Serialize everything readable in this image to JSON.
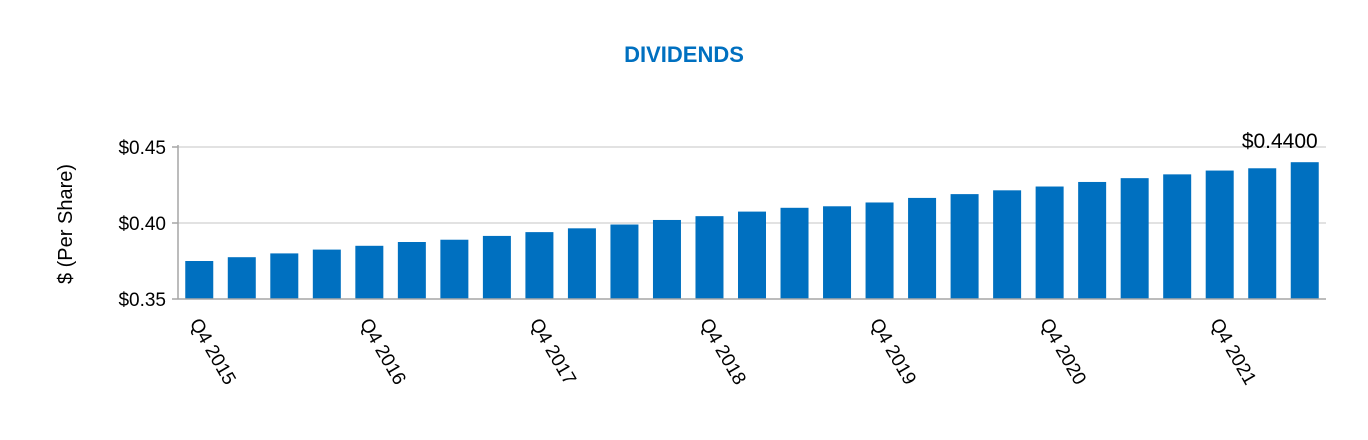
{
  "chart_data": {
    "type": "bar",
    "title": "DIVIDENDS",
    "ylabel": "$ (Per Share)",
    "xlabel": "",
    "ylim": [
      0.35,
      0.45
    ],
    "ytick_values": [
      0.35,
      0.4,
      0.45
    ],
    "ytick_labels": [
      "$0.35",
      "$0.40",
      "$0.45"
    ],
    "grid": true,
    "categories": [
      "Q4 2015",
      "",
      "",
      "",
      "Q4 2016",
      "",
      "",
      "",
      "Q4 2017",
      "",
      "",
      "",
      "Q4 2018",
      "",
      "",
      "",
      "Q4 2019",
      "",
      "",
      "",
      "Q4 2020",
      "",
      "",
      "",
      "Q4 2021",
      "",
      ""
    ],
    "values": [
      0.375,
      0.3775,
      0.38,
      0.3825,
      0.385,
      0.3875,
      0.389,
      0.3915,
      0.394,
      0.3965,
      0.399,
      0.402,
      0.4045,
      0.4075,
      0.41,
      0.411,
      0.4135,
      0.4165,
      0.419,
      0.4215,
      0.424,
      0.427,
      0.4295,
      0.432,
      0.4345,
      0.436,
      0.44
    ],
    "data_labels": [
      {
        "index": 26,
        "text": "$0.4400"
      }
    ],
    "colors": {
      "bar": "#0070c0",
      "title": "#0070c0",
      "axis": "#a6a6a6",
      "grid": "#d9d9d9"
    }
  }
}
